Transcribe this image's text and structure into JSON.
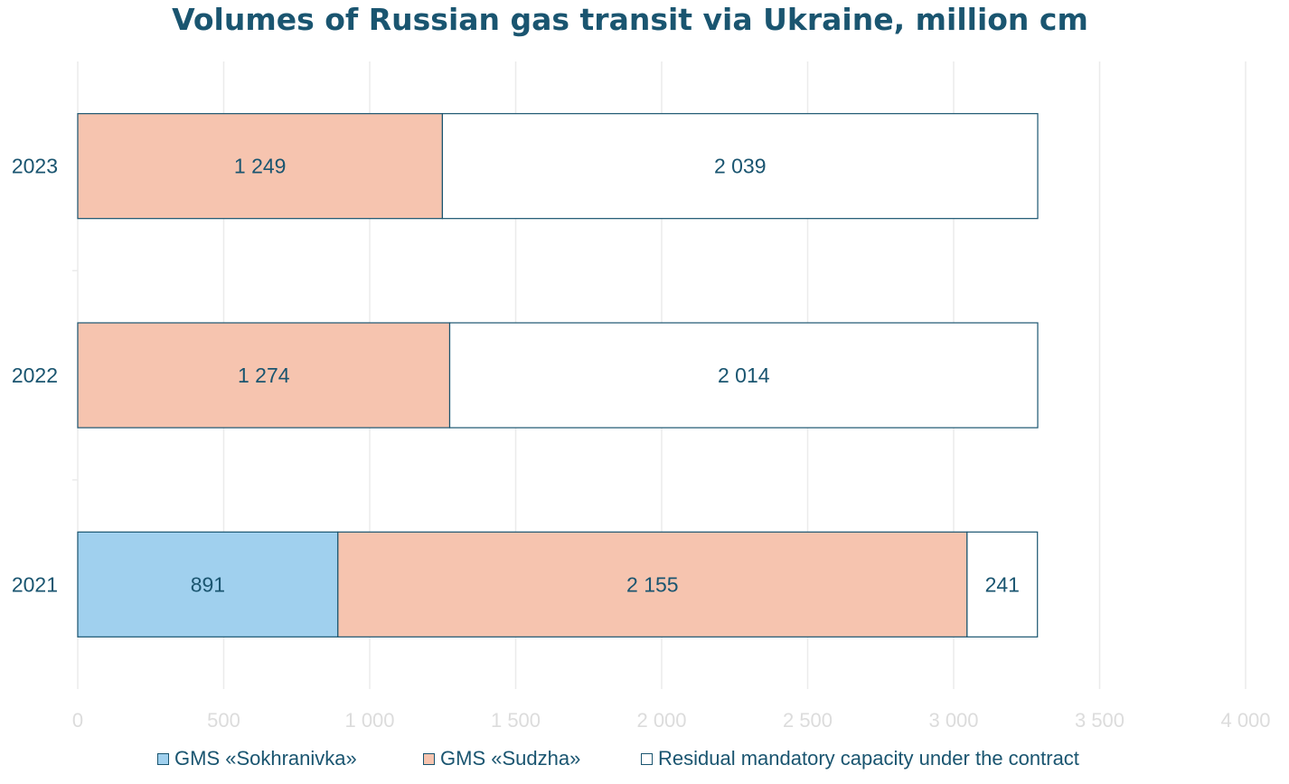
{
  "chart_data": {
    "type": "bar",
    "orientation": "horizontal",
    "stacked": true,
    "title": "Volumes of Russian gas transit via Ukraine, million cm",
    "categories": [
      "2023",
      "2022",
      "2021"
    ],
    "series": [
      {
        "name": "GMS «Sokhranivka»",
        "color": "#a0d0ee",
        "values": [
          0,
          0,
          891
        ],
        "labels": [
          "",
          "",
          "891"
        ]
      },
      {
        "name": "GMS «Sudzha»",
        "color": "#f6c4af",
        "values": [
          1249,
          1274,
          2155
        ],
        "labels": [
          "1 249",
          "1 274",
          "2 155"
        ]
      },
      {
        "name": "Residual mandatory capacity under the contract",
        "color": "#ffffff",
        "values": [
          2039,
          2014,
          241
        ],
        "labels": [
          "2 039",
          "2 014",
          "241"
        ]
      }
    ],
    "xlim": [
      0,
      4000
    ],
    "xticks": [
      0,
      500,
      1000,
      1500,
      2000,
      2500,
      3000,
      3500,
      4000
    ],
    "xtick_labels": [
      "0",
      "500",
      "1 000",
      "1 500",
      "2 000",
      "2 500",
      "3 000",
      "3 500",
      "4 000"
    ],
    "grid": true,
    "legend_position": "bottom",
    "text_color": "#1a5570",
    "grid_color": "#ebebeb"
  }
}
